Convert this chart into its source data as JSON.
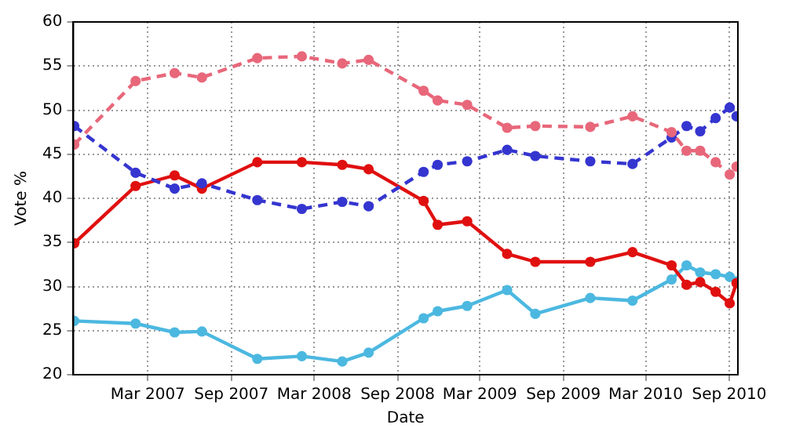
{
  "chart_data": {
    "type": "line",
    "xlabel": "Date",
    "ylabel": "Vote %",
    "x": [
      "2006-09-20",
      "2007-02-02",
      "2007-04-29",
      "2007-06-28",
      "2007-10-28",
      "2008-02-03",
      "2008-05-02",
      "2008-06-29",
      "2008-10-28",
      "2008-11-28",
      "2009-02-01",
      "2009-04-30",
      "2009-07-01",
      "2009-10-30",
      "2010-01-31",
      "2010-04-27",
      "2010-05-30",
      "2010-06-29",
      "2010-08-02",
      "2010-09-02",
      "2010-09-17"
    ],
    "series": [
      {
        "color": "#e8677a",
        "line_style": "dashed",
        "values": [
          46.1,
          53.3,
          54.2,
          53.7,
          55.9,
          56.1,
          55.3,
          55.7,
          52.2,
          51.1,
          50.6,
          48.0,
          48.2,
          48.1,
          49.3,
          47.5,
          45.4,
          45.4,
          44.1,
          42.7,
          43.6
        ]
      },
      {
        "color": "#3535d0",
        "line_style": "dashed",
        "values": [
          48.2,
          42.9,
          41.1,
          41.7,
          39.8,
          38.8,
          39.6,
          39.1,
          43.0,
          43.8,
          44.2,
          45.5,
          44.8,
          44.2,
          43.9,
          46.9,
          48.2,
          47.6,
          49.1,
          50.3,
          49.3
        ]
      },
      {
        "color": "#e01010",
        "line_style": "solid",
        "values": [
          34.9,
          41.4,
          42.6,
          41.1,
          44.1,
          44.1,
          43.8,
          43.3,
          39.7,
          37.0,
          37.4,
          33.7,
          32.8,
          32.8,
          33.9,
          32.4,
          30.2,
          30.5,
          29.4,
          28.1,
          30.4
        ]
      },
      {
        "color": "#4cb8e0",
        "line_style": "solid",
        "values": [
          26.1,
          25.8,
          24.8,
          24.9,
          21.8,
          22.1,
          21.5,
          22.5,
          26.4,
          27.2,
          27.8,
          29.6,
          26.9,
          28.7,
          28.4,
          30.8,
          32.4,
          31.6,
          31.4,
          31.1,
          30.6
        ]
      }
    ],
    "xlim": [
      "2006-09-18",
      "2010-09-20"
    ],
    "xticks": [
      {
        "value": "2007-03-01",
        "label": "Mar 2007"
      },
      {
        "value": "2007-09-01",
        "label": "Sep 2007"
      },
      {
        "value": "2008-03-01",
        "label": "Mar 2008"
      },
      {
        "value": "2008-09-01",
        "label": "Sep 2008"
      },
      {
        "value": "2009-03-01",
        "label": "Mar 2009"
      },
      {
        "value": "2009-09-01",
        "label": "Sep 2009"
      },
      {
        "value": "2010-03-01",
        "label": "Mar 2010"
      },
      {
        "value": "2010-09-01",
        "label": "Sep 2010"
      }
    ],
    "ylim": [
      20,
      60
    ],
    "yticks": [
      20,
      25,
      30,
      35,
      40,
      45,
      50,
      55,
      60
    ],
    "grid": true,
    "marker": "circle",
    "legend": false
  }
}
